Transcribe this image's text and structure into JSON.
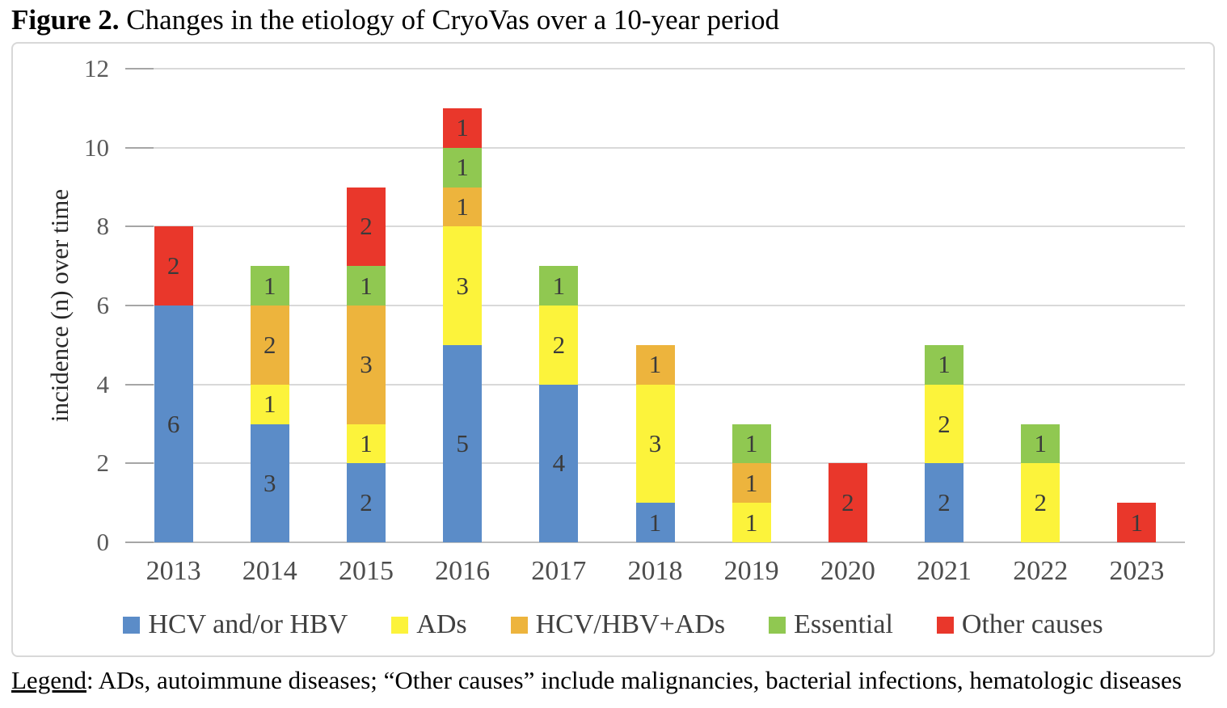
{
  "figure_title": {
    "label": "Figure 2.",
    "text": " Changes in the etiology of CryoVas over a 10-year period"
  },
  "footnote": {
    "label": "Legend",
    "text": ": ADs, autoimmune diseases; “Other causes” include malignancies, bacterial infections, hematologic diseases"
  },
  "chart_data": {
    "type": "bar",
    "stacked": true,
    "title": "",
    "xlabel": "",
    "ylabel": "incidence (n) over time",
    "ylim": [
      0,
      12
    ],
    "yticks": [
      0,
      2,
      4,
      6,
      8,
      10,
      12
    ],
    "grid": true,
    "legend_position": "bottom",
    "categories": [
      "2013",
      "2014",
      "2015",
      "2016",
      "2017",
      "2018",
      "2019",
      "2020",
      "2021",
      "2022",
      "2023"
    ],
    "series": [
      {
        "name": "HCV and/or HBV",
        "color": "#5b8cc8",
        "values": [
          6,
          3,
          2,
          5,
          4,
          1,
          0,
          0,
          2,
          0,
          0
        ]
      },
      {
        "name": "ADs",
        "color": "#fcf33b",
        "values": [
          0,
          1,
          1,
          3,
          2,
          3,
          1,
          0,
          2,
          2,
          0
        ]
      },
      {
        "name": "HCV/HBV+ADs",
        "color": "#edb43d",
        "values": [
          0,
          2,
          3,
          1,
          0,
          1,
          1,
          0,
          0,
          0,
          0
        ]
      },
      {
        "name": "Essential",
        "color": "#90c851",
        "values": [
          0,
          1,
          1,
          1,
          1,
          0,
          1,
          0,
          1,
          1,
          0
        ]
      },
      {
        "name": "Other causes",
        "color": "#e9372b",
        "values": [
          2,
          0,
          2,
          1,
          0,
          0,
          0,
          2,
          0,
          0,
          1
        ]
      }
    ],
    "bar_totals": [
      8,
      7,
      9,
      11,
      7,
      5,
      3,
      2,
      5,
      3,
      1
    ]
  },
  "colors": {
    "gridline": "#d9d9d9",
    "axis_line": "#bfbfbf",
    "tick": "#a6a6a6",
    "axis_label": "#595959",
    "chart_border": "#d8d8d8"
  }
}
